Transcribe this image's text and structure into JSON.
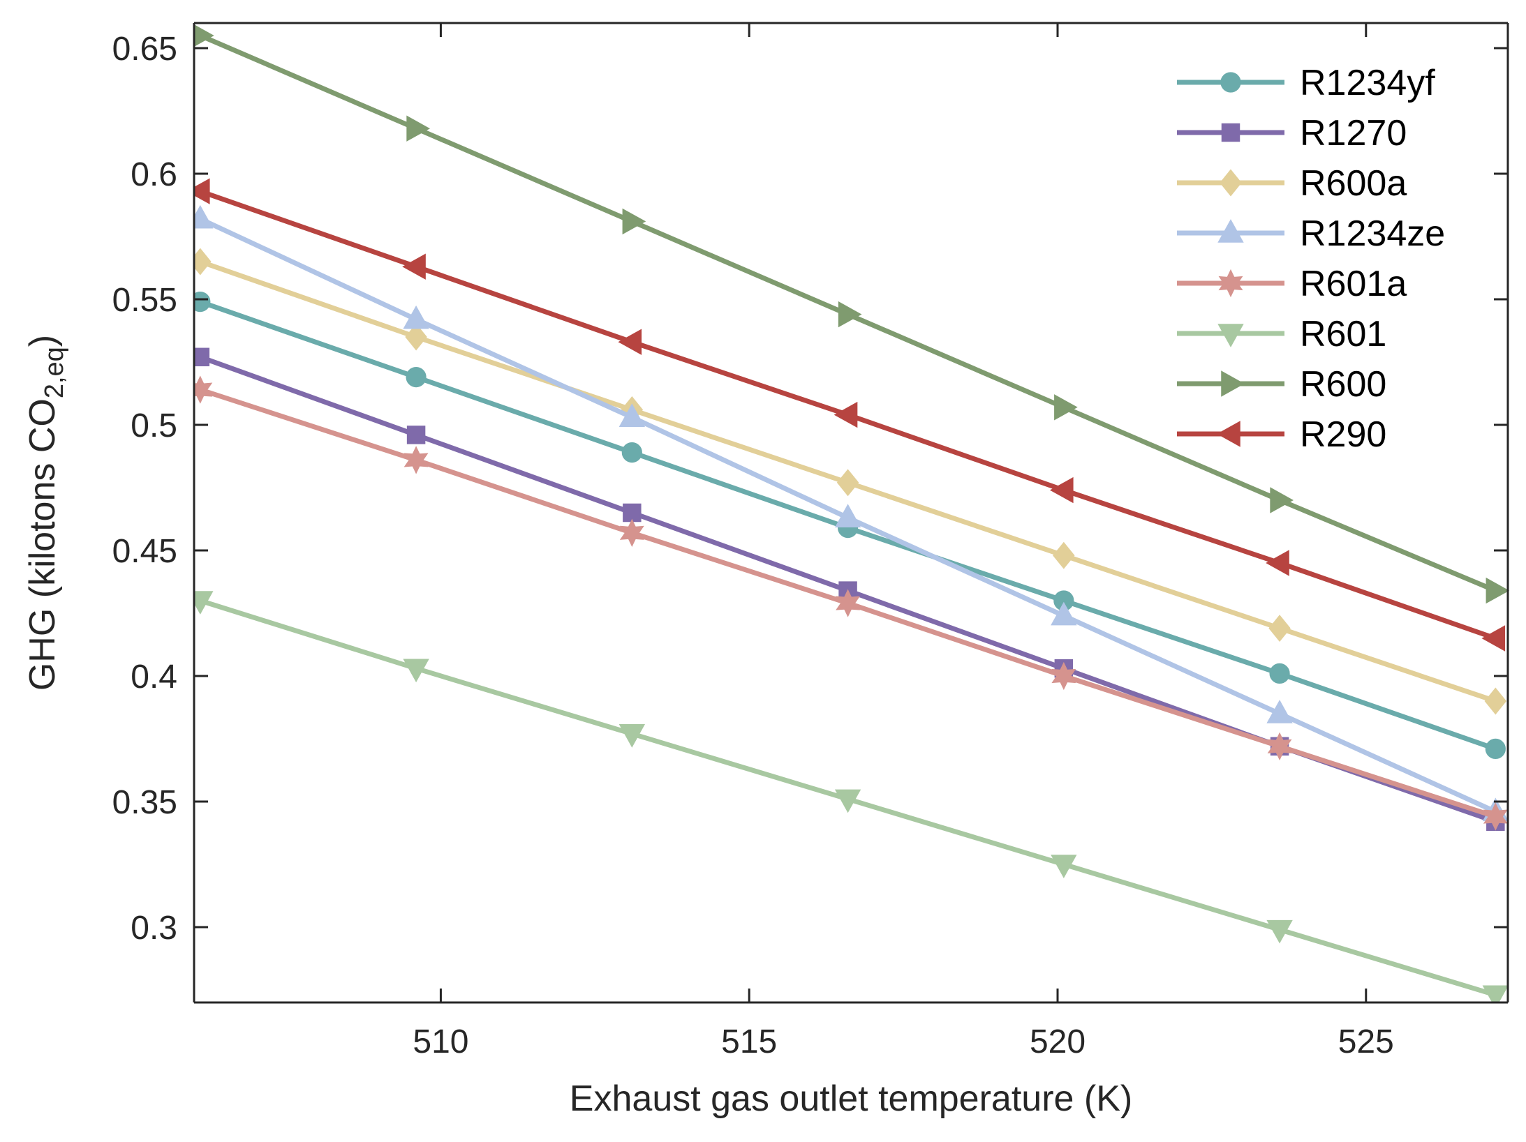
{
  "chart_data": {
    "type": "line",
    "xlabel": "Exhaust gas outlet temperature (K)",
    "ylabel": {
      "prefix": "GHG (kilotons CO",
      "subscript": "2,eq",
      "suffix": ")"
    },
    "xlim": [
      506,
      527.3
    ],
    "ylim": [
      0.27,
      0.66
    ],
    "x_ticks": [
      510,
      515,
      520,
      525
    ],
    "y_ticks": [
      0.3,
      0.35,
      0.4,
      0.45,
      0.5,
      0.55,
      0.6,
      0.65
    ],
    "x_tick_labels": [
      "510",
      "515",
      "520",
      "525"
    ],
    "y_tick_labels": [
      "0.3",
      "0.35",
      "0.4",
      "0.45",
      "0.5",
      "0.55",
      "0.6",
      "0.65"
    ],
    "x": [
      506.1,
      509.6,
      513.1,
      516.6,
      520.1,
      523.6,
      527.1
    ],
    "series": [
      {
        "name": "R1234yf",
        "marker": "circle",
        "color": "#6aabab",
        "values": [
          0.549,
          0.519,
          0.489,
          0.459,
          0.43,
          0.401,
          0.371
        ]
      },
      {
        "name": "R1270",
        "marker": "square",
        "color": "#7f6aaa",
        "values": [
          0.527,
          0.496,
          0.465,
          0.434,
          0.403,
          0.372,
          0.342
        ]
      },
      {
        "name": "R600a",
        "marker": "diamond",
        "color": "#e2cf98",
        "values": [
          0.565,
          0.535,
          0.506,
          0.477,
          0.448,
          0.419,
          0.39
        ]
      },
      {
        "name": "R1234ze",
        "marker": "triangle-up",
        "color": "#b0c4e6",
        "values": [
          0.582,
          0.542,
          0.503,
          0.463,
          0.424,
          0.385,
          0.346
        ]
      },
      {
        "name": "R601a",
        "marker": "star",
        "color": "#d5938e",
        "values": [
          0.514,
          0.486,
          0.457,
          0.429,
          0.4,
          0.372,
          0.344
        ]
      },
      {
        "name": "R601",
        "marker": "triangle-down",
        "color": "#a8c8a1",
        "values": [
          0.43,
          0.403,
          0.377,
          0.351,
          0.325,
          0.299,
          0.273
        ]
      },
      {
        "name": "R600",
        "marker": "triangle-right",
        "color": "#7f9b6f",
        "values": [
          0.655,
          0.618,
          0.581,
          0.544,
          0.507,
          0.47,
          0.434
        ]
      },
      {
        "name": "R290",
        "marker": "triangle-left",
        "color": "#b74440",
        "values": [
          0.593,
          0.563,
          0.533,
          0.504,
          0.474,
          0.445,
          0.415
        ]
      }
    ],
    "legend_position": "top-right",
    "grid": false
  }
}
